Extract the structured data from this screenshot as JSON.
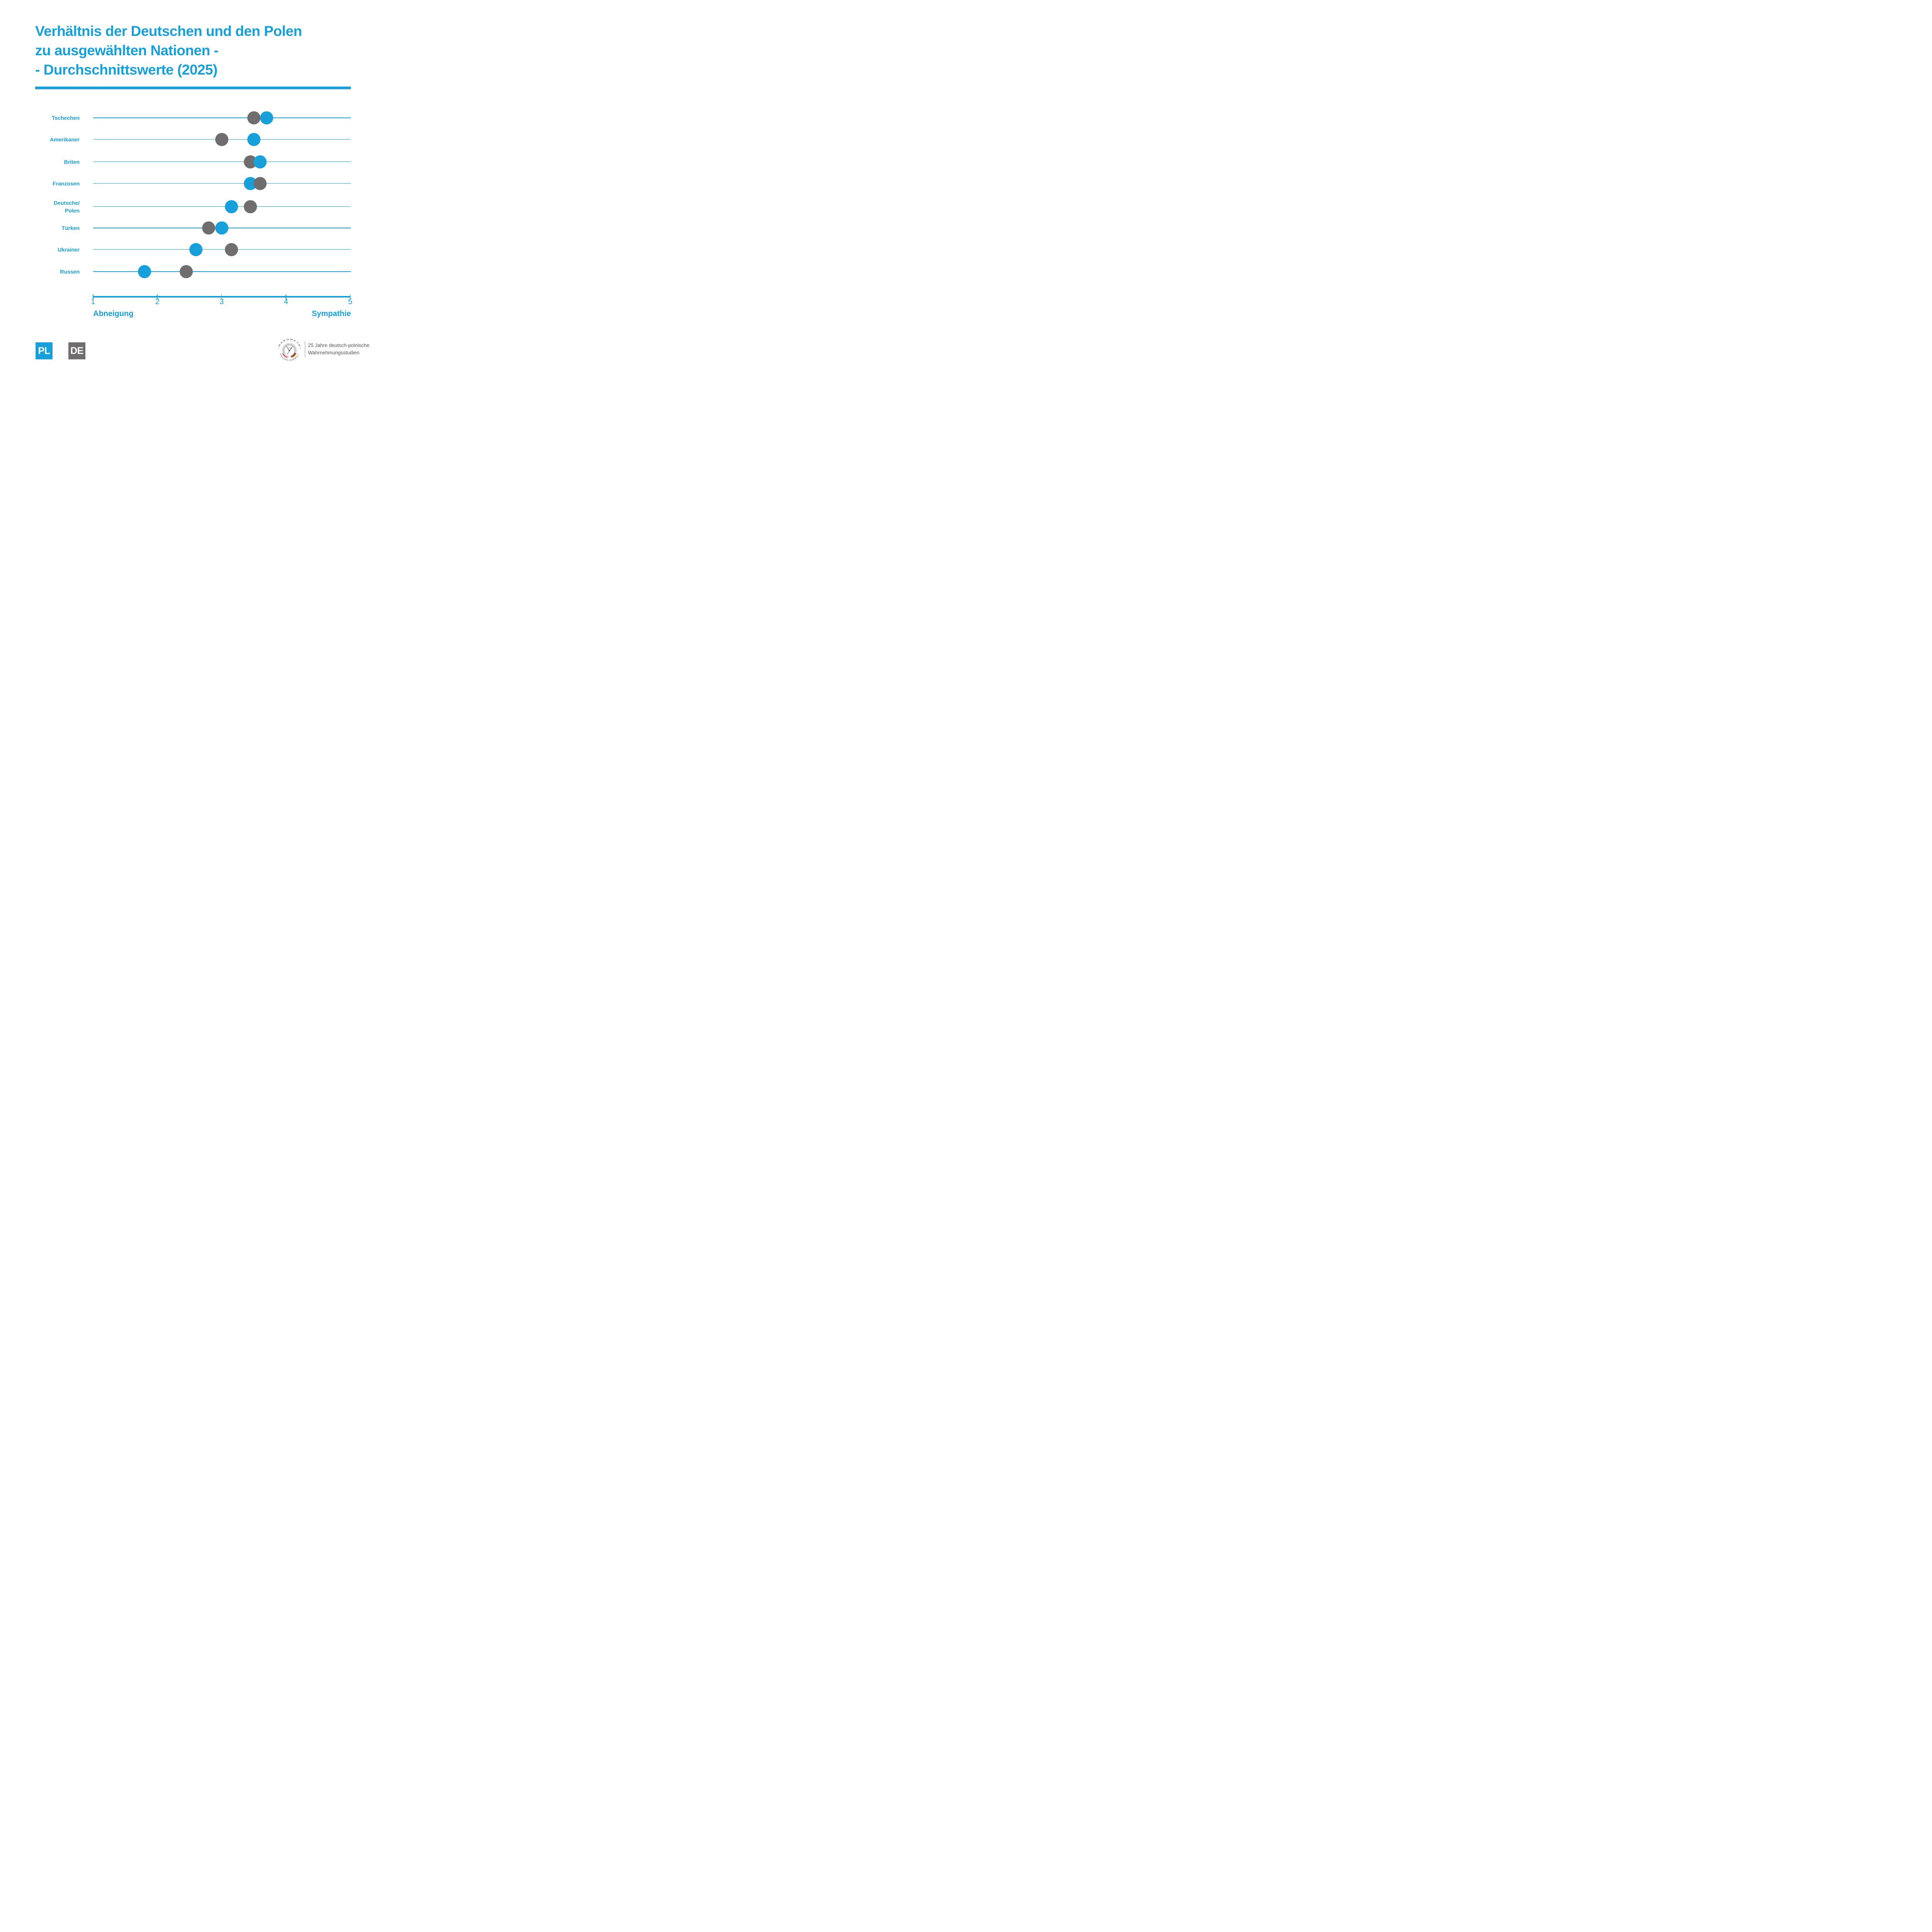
{
  "page": {
    "background": "#FFFFFF"
  },
  "title": {
    "text": "Verhältnis der Deutschen und den Polen\nzu ausgewählten Nationen -\n- Durchschnittswerte (2025)"
  },
  "colors": {
    "page_bg": "#FFFFFF",
    "accent_blue": "#18A0DB",
    "dot_blue": "#18A0DB",
    "dot_gray": "#6F6D6D",
    "legend_pl_bg": "#18A0DB",
    "legend_de_bg": "#6F6D6D",
    "logo_circle_gray": "#DBDBDB",
    "logo_dark_gray": "#595959",
    "logo_text_gray": "#6F6F6F",
    "credit_text_gray": "#555555",
    "flag_white": "#FFFFFF",
    "flag_red": "#D4202C",
    "flag_black": "#3C3C3C",
    "flag_gold": "#EE8B00"
  },
  "chart_data": {
    "type": "scatter",
    "subtype": "dumbbell-dot-plot",
    "description": "Average sympathy ratings (scale 1 = Abneigung to 5 = Sympathie) of Poles (PL, blue dots) and Germans (DE, gray dots) toward selected nations, 2025",
    "categories": [
      "Tschechen",
      "Amerikaner",
      "Briten",
      "Franzosen",
      "Deutsche/\nPolen",
      "Türken",
      "Ukrainer",
      "Russen"
    ],
    "series": [
      {
        "name": "PL",
        "color_key": "dot_blue",
        "values": [
          3.7,
          3.5,
          3.6,
          3.45,
          3.15,
          3.0,
          2.6,
          1.8
        ]
      },
      {
        "name": "DE",
        "color_key": "dot_gray",
        "values": [
          3.5,
          3.0,
          3.45,
          3.6,
          3.45,
          2.8,
          3.15,
          2.45
        ]
      }
    ],
    "xlim": [
      1,
      5
    ],
    "xticks": [
      "1",
      "2",
      "3",
      "4",
      "5"
    ],
    "axis_label_left": "Abneigung",
    "axis_label_right": "Sympathie",
    "grid": "horizontal category lines, legend bottom-left as PL/DE badges"
  },
  "legend": {
    "pl": "PL",
    "de": "DE"
  },
  "footer": {
    "logo": {
      "ring_top": "• B A R O M E T R •",
      "ring_bottom": "P O L S K A - N I E M C Y"
    },
    "credit": "25 Jahre deutsch-polnische\nWahrnehmungsstudien"
  }
}
